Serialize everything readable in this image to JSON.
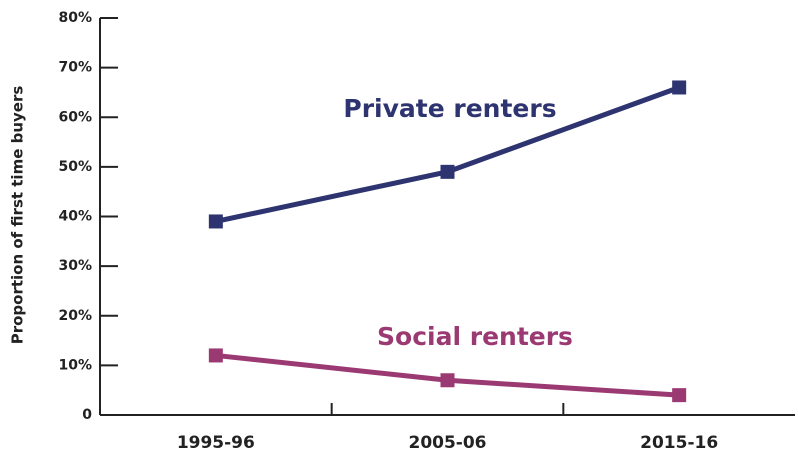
{
  "chart_data": {
    "type": "line",
    "y_label": "Proportion of first time buyers",
    "categories": [
      "1995-96",
      "2005-06",
      "2015-16"
    ],
    "series": [
      {
        "name": "Private renters",
        "color": "#2e3470",
        "values": [
          39,
          49,
          66
        ]
      },
      {
        "name": "Social renters",
        "color": "#9b3a72",
        "values": [
          12,
          7,
          4
        ]
      }
    ],
    "ylim": [
      0,
      80
    ],
    "yticks": [
      0,
      {
        "value": 10,
        "label": "10%"
      },
      {
        "value": 20,
        "label": "20%"
      },
      {
        "value": 30,
        "label": "30%"
      },
      {
        "value": 40,
        "label": "40%"
      },
      {
        "value": 50,
        "label": "50%"
      },
      {
        "value": 60,
        "label": "60%"
      },
      {
        "value": 70,
        "label": "70%"
      },
      {
        "value": 80,
        "label": "80%"
      }
    ],
    "grid": false
  }
}
